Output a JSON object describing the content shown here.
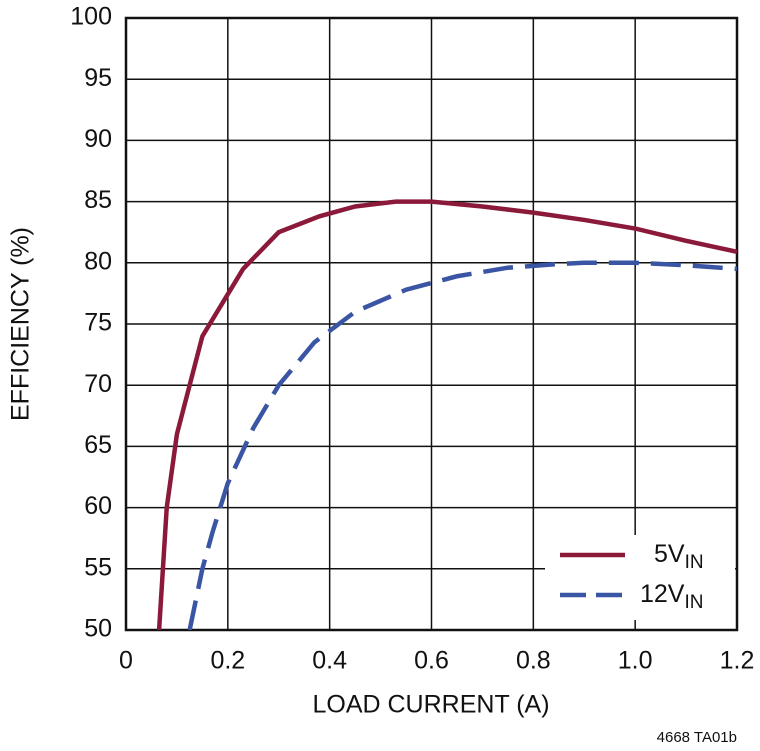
{
  "chart_data": {
    "type": "line",
    "xlabel": "LOAD CURRENT (A)",
    "ylabel": "EFFICIENCY (%)",
    "footnote": "4668 TA01b",
    "xlim": [
      0,
      1.2
    ],
    "ylim": [
      50,
      100
    ],
    "xticks": [
      0,
      0.2,
      0.4,
      0.6,
      0.8,
      {
        "value": 1,
        "label": "1.0"
      },
      1.2
    ],
    "yticks": [
      50,
      55,
      60,
      65,
      70,
      75,
      80,
      85,
      90,
      95,
      100
    ],
    "grid": true,
    "legend": "lower right",
    "series": [
      {
        "name": "5V",
        "name_subscript": "IN",
        "color": "#8b1a3a",
        "dash": false,
        "x": [
          0.065,
          0.08,
          0.1,
          0.15,
          0.23,
          0.3,
          0.38,
          0.45,
          0.53,
          0.6,
          0.7,
          0.8,
          0.9,
          1.0,
          1.1,
          1.2
        ],
        "values": [
          50,
          60,
          66,
          74,
          79.5,
          82.5,
          83.8,
          84.6,
          85,
          85,
          84.6,
          84.1,
          83.5,
          82.8,
          81.8,
          80.9
        ]
      },
      {
        "name": "12V",
        "name_subscript": "IN",
        "color": "#3b55a5",
        "dash": true,
        "x": [
          0.125,
          0.15,
          0.17,
          0.2,
          0.25,
          0.3,
          0.37,
          0.45,
          0.55,
          0.65,
          0.75,
          0.85,
          0.9,
          1.0,
          1.1,
          1.2
        ],
        "values": [
          50,
          55,
          58,
          62,
          66.5,
          70,
          73.5,
          76,
          77.8,
          78.9,
          79.6,
          79.9,
          80,
          80,
          79.8,
          79.5
        ]
      }
    ]
  }
}
